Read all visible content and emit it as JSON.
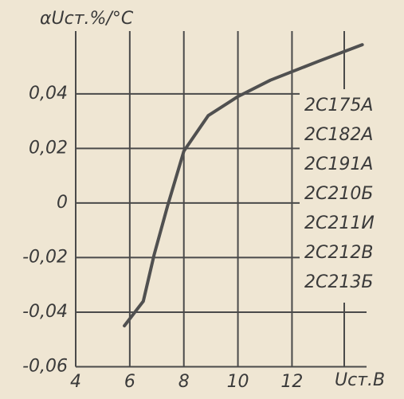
{
  "chart_data": {
    "type": "line",
    "title": "αUст.%/°C",
    "x_label": "Uст.В",
    "x": [
      5.8,
      6.5,
      6.9,
      7.4,
      8.0,
      8.9,
      10.0,
      11.2,
      13.0,
      14.6
    ],
    "series": [
      {
        "name": null,
        "color": "#505050",
        "values": [
          -0.045,
          -0.036,
          -0.019,
          -0.001,
          0.019,
          0.032,
          0.039,
          0.045,
          0.052,
          0.058
        ]
      }
    ],
    "xlim": [
      4,
      15.2
    ],
    "xticks": [
      4,
      6,
      8,
      10,
      12
    ],
    "ylim": [
      -0.06,
      0.063
    ],
    "yticks": [
      {
        "value": -0.06,
        "label": "-0,06"
      },
      {
        "value": -0.04,
        "label": "-0,04"
      },
      {
        "value": -0.02,
        "label": "-0,02"
      },
      0,
      {
        "value": 0.02,
        "label": "0,02"
      },
      {
        "value": 0.04,
        "label": "0,04"
      }
    ],
    "grid": true,
    "annotations": [
      "2С175А",
      "2С182А",
      "2С191А",
      "2С210Б",
      "2С211И",
      "2С212В",
      "2С213Б"
    ]
  }
}
